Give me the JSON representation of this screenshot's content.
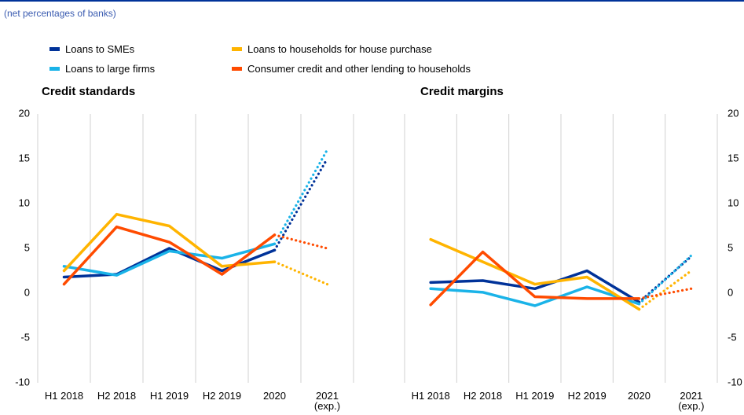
{
  "subtitle": "(net percentages of banks)",
  "chart_data": [
    {
      "type": "line",
      "title": "Credit standards",
      "categories": [
        "H1 2018",
        "H2 2018",
        "H1 2019",
        "H2 2019",
        "2020",
        "2021\n(exp.)"
      ],
      "ylim": [
        -10,
        20
      ],
      "yticks": [
        -10,
        -5,
        0,
        5,
        10,
        15,
        20
      ],
      "y_axis_side": "left",
      "dotted_from_index": 4,
      "series": [
        {
          "name": "Loans to SMEs",
          "color": "#003299",
          "values": [
            1.8,
            2.1,
            5.0,
            2.5,
            4.8,
            15.0
          ]
        },
        {
          "name": "Loans to large firms",
          "color": "#1ab3e8",
          "values": [
            3.0,
            2.0,
            4.7,
            3.9,
            5.5,
            16.0
          ]
        },
        {
          "name": "Loans to households for house purchase",
          "color": "#ffb400",
          "values": [
            2.5,
            8.8,
            7.5,
            3.0,
            3.5,
            1.0
          ]
        },
        {
          "name": "Consumer credit and other lending to households",
          "color": "#ff4b00",
          "values": [
            1.0,
            7.4,
            5.7,
            2.1,
            6.5,
            5.0
          ]
        }
      ]
    },
    {
      "type": "line",
      "title": "Credit margins",
      "categories": [
        "H1 2018",
        "H2 2018",
        "H1 2019",
        "H2 2019",
        "2020",
        "2021\n(exp.)"
      ],
      "ylim": [
        -10,
        20
      ],
      "yticks": [
        -10,
        -5,
        0,
        5,
        10,
        15,
        20
      ],
      "y_axis_side": "right",
      "dotted_from_index": 4,
      "series": [
        {
          "color": "#003299",
          "values": [
            1.2,
            1.4,
            0.5,
            2.5,
            -1.0,
            4.1
          ]
        },
        {
          "color": "#1ab3e8",
          "values": [
            0.5,
            0.1,
            -1.4,
            0.7,
            -1.2,
            4.2
          ]
        },
        {
          "color": "#ffb400",
          "values": [
            6.0,
            3.5,
            1.0,
            1.8,
            -1.8,
            2.5
          ]
        },
        {
          "color": "#ff4b00",
          "values": [
            -1.3,
            4.6,
            -0.4,
            -0.6,
            -0.6,
            0.5
          ]
        }
      ]
    }
  ]
}
